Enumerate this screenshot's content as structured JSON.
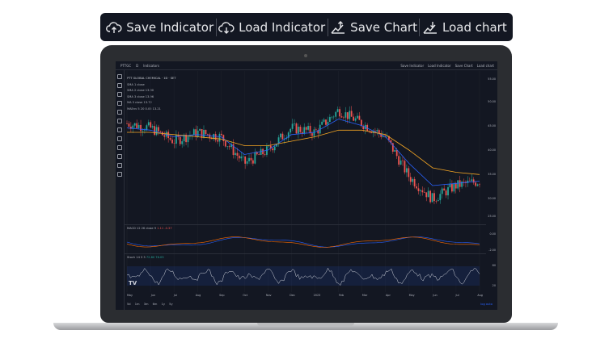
{
  "toolbar": {
    "buttons": [
      {
        "label": "Save Indicator",
        "icon": "cloud-upload-icon"
      },
      {
        "label": "Load Indicator",
        "icon": "cloud-download-icon"
      },
      {
        "label": "Save Chart",
        "icon": "chart-upload-icon"
      },
      {
        "label": "Load chart",
        "icon": "chart-download-icon"
      }
    ]
  },
  "screen": {
    "header": {
      "symbol": "PTTGC",
      "interval": "D",
      "indicators_label": "Indicators",
      "right_buttons": [
        "Save Indicator",
        "Load Indicator",
        "Save Chart",
        "Load chart"
      ]
    },
    "legend": {
      "title": "PTT GLOBAL CHEMICAL · 1D · SET",
      "lines": [
        "SMA 1 close",
        "SMA 2 close 13.90",
        "SMA 3 close 13.96",
        "MA 5 close 13.72",
        "MAEnv 5 20 0.05 13.21"
      ]
    },
    "price_axis": [
      "55.00",
      "50.00",
      "45.00",
      "40.00",
      "35.00",
      "30.00",
      "25.00"
    ],
    "macd_label": "MACD 12 26 close 9",
    "macd_values": "1.11 -0.37",
    "macd_axis": [
      "0.00",
      "-2.00"
    ],
    "stoch_label": "Stoch 14 3 3",
    "stoch_values": "72.80 76.03",
    "stoch_axis": [
      "80",
      "20"
    ],
    "x_axis": [
      "May",
      "Jun",
      "Jul",
      "Aug",
      "Sep",
      "Oct",
      "Nov",
      "Dec",
      "2023",
      "Feb",
      "Mar",
      "Apr",
      "May",
      "Jun",
      "Jul",
      "Aug"
    ],
    "timeframes": [
      "5d",
      "1m",
      "3m",
      "6m",
      "1y",
      "5y"
    ],
    "timeframe_right": "log auto",
    "logo": "TV"
  },
  "chart_data": {
    "type": "line",
    "title": "PTT GLOBAL CHEMICAL · 1D · SET",
    "x": [
      "May",
      "Jun",
      "Jul",
      "Aug",
      "Sep",
      "Oct",
      "Nov",
      "Dec",
      "2023",
      "Feb",
      "Mar",
      "Apr",
      "May",
      "Jun",
      "Jul",
      "Aug"
    ],
    "series": [
      {
        "name": "price",
        "values": [
          47,
          46,
          43,
          45,
          44,
          38,
          41,
          46,
          45,
          50,
          47,
          44,
          35,
          30,
          33,
          34
        ]
      },
      {
        "name": "SMA",
        "values": [
          46,
          45.5,
          44,
          44.5,
          44,
          40,
          41,
          44.5,
          45,
          48,
          46.5,
          44,
          38,
          33,
          33.5,
          34
        ]
      },
      {
        "name": "MA",
        "values": [
          45,
          45,
          44.5,
          44,
          43.5,
          42,
          42,
          43,
          44,
          45.5,
          45.5,
          44.5,
          41,
          37,
          36,
          35.5
        ]
      }
    ],
    "ylim": [
      25,
      57
    ],
    "colors": {
      "up": "#26a69a",
      "down": "#ef5350",
      "sma": "#2962ff",
      "ma": "#f5a623",
      "macd": "#2962ff",
      "signal": "#ff6d00",
      "stoch": "#d1d4dc"
    }
  }
}
